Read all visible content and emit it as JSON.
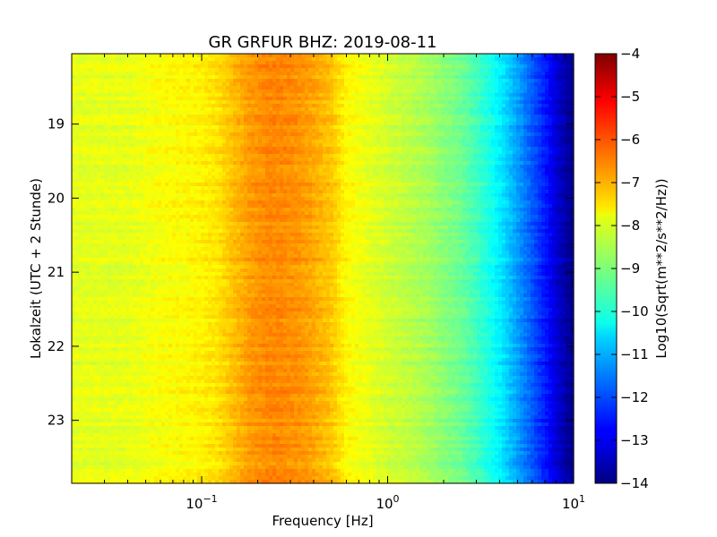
{
  "chart_data": {
    "type": "heatmap",
    "title": "GR GRFUR BHZ: 2019-08-11",
    "xlabel": "Frequency [Hz]",
    "ylabel": "Lokalzeit (UTC + 2 Stunde)",
    "x_scale": "log",
    "xlim": [
      0.02,
      10
    ],
    "x_ticks": [
      {
        "value": 0.1,
        "base": "10",
        "exp": "−1"
      },
      {
        "value": 1,
        "base": "10",
        "exp": "0"
      },
      {
        "value": 10,
        "base": "10",
        "exp": "1"
      }
    ],
    "ylim": [
      18.05,
      23.85
    ],
    "y_inverted": true,
    "y_ticks": [
      "19",
      "20",
      "21",
      "22",
      "23"
    ],
    "colorbar": {
      "label": "Log10(Sqrt(m**2/s**2/Hz))",
      "range": [
        -14,
        -4
      ],
      "colormap": "jet",
      "ticks": [
        "−4",
        "−5",
        "−6",
        "−7",
        "−8",
        "−9",
        "−10",
        "−11",
        "−12",
        "−13",
        "−14"
      ]
    },
    "spectral_profile": {
      "frequency_hz": [
        0.02,
        0.04,
        0.06,
        0.09,
        0.12,
        0.15,
        0.18,
        0.22,
        0.27,
        0.33,
        0.4,
        0.5,
        0.6,
        0.8,
        1.0,
        1.3,
        1.6,
        2.0,
        2.5,
        3.0,
        3.5,
        4.0,
        4.5,
        5.0,
        6.0,
        7.0,
        8.0,
        9.0,
        10.0
      ],
      "log10_amplitude": [
        -8.0,
        -8.0,
        -7.8,
        -7.7,
        -7.5,
        -7.1,
        -6.8,
        -6.6,
        -6.6,
        -6.7,
        -6.9,
        -7.2,
        -7.7,
        -8.0,
        -8.2,
        -8.4,
        -8.6,
        -8.9,
        -9.2,
        -9.6,
        -10.0,
        -10.4,
        -10.8,
        -11.2,
        -11.9,
        -12.5,
        -13.1,
        -13.6,
        -13.9
      ]
    }
  }
}
